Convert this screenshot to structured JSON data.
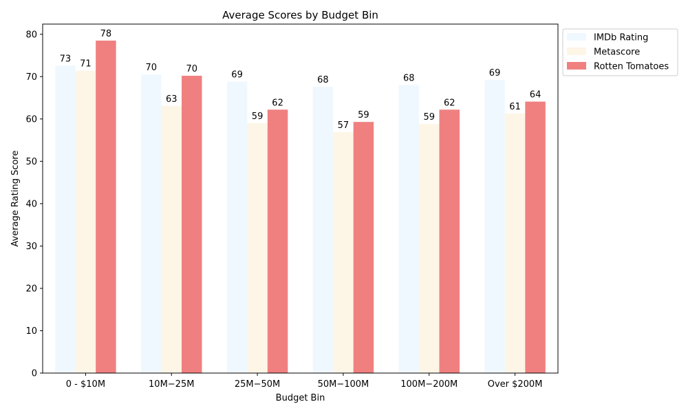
{
  "chart_data": {
    "type": "bar",
    "title": "Average Scores by Budget Bin",
    "xlabel": "Budget Bin",
    "ylabel": "Average Rating Score",
    "categories": [
      "0 - $10M",
      "$10M - $25M",
      "$25M - $50M",
      "$50M - $100M",
      "$100M - $200M",
      "Over $200M"
    ],
    "category_tick_labels": [
      "0 - $10M",
      "10M−25M",
      "25M−50M",
      "50M−100M",
      "100M−200M",
      "Over $200M"
    ],
    "series": [
      {
        "name": "IMDb Rating",
        "color": "#F0F8FF",
        "values": [
          72.6,
          70.5,
          68.8,
          67.6,
          68.0,
          69.2
        ],
        "labels": [
          "73",
          "70",
          "69",
          "68",
          "68",
          "69"
        ]
      },
      {
        "name": "Metascore",
        "color": "#FDF5E6",
        "values": [
          71.4,
          63.1,
          59.0,
          56.9,
          58.8,
          61.3
        ],
        "labels": [
          "71",
          "63",
          "59",
          "57",
          "59",
          "61"
        ]
      },
      {
        "name": "Rotten Tomatoes",
        "color": "#F08080",
        "values": [
          78.5,
          70.2,
          62.2,
          59.3,
          62.2,
          64.1
        ],
        "labels": [
          "78",
          "70",
          "62",
          "59",
          "62",
          "64"
        ]
      }
    ],
    "ylim": [
      0,
      82.4
    ],
    "yticks": [
      0,
      10,
      20,
      30,
      40,
      50,
      60,
      70,
      80
    ],
    "grid": false,
    "legend_position": "outside-top-right"
  }
}
